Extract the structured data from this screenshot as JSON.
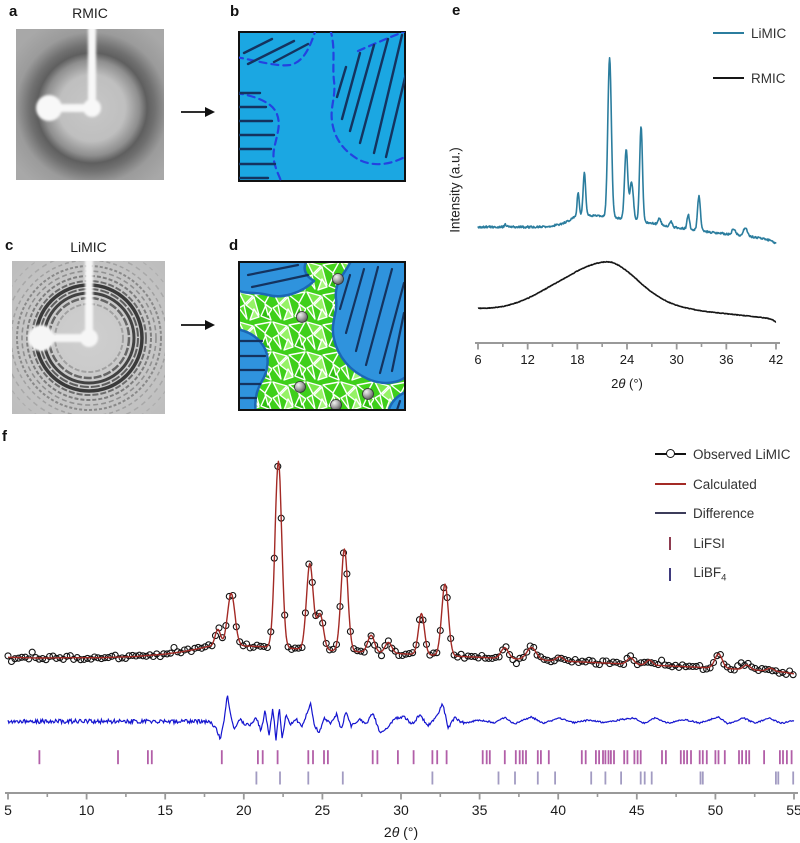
{
  "panels": {
    "a": {
      "label": "a",
      "title": "RMIC"
    },
    "b": {
      "label": "b"
    },
    "c": {
      "label": "c",
      "title": "LiMIC"
    },
    "d": {
      "label": "d"
    },
    "e": {
      "label": "e"
    },
    "f": {
      "label": "f"
    }
  },
  "colors": {
    "cyan_bg": "#1ba7e2",
    "dashed_blue": "#2442e0",
    "hatch_navy": "#14335f",
    "grain_blue": "#2f93dd",
    "grain_blue_edge": "#1b67b5",
    "green_base": "#3ecf1a",
    "axis_gray": "#999999",
    "label_dark": "#1a1a1a"
  },
  "chart_data": [
    {
      "panel": "e",
      "type": "line",
      "ylabel": "Intensity (a.u.)",
      "xlabel": {
        "pre": "2",
        "theta": "θ",
        "post": " (°)"
      },
      "xlim": [
        6,
        42
      ],
      "xticks": [
        6,
        12,
        18,
        24,
        30,
        36,
        42
      ],
      "xminor_step": 3,
      "grid": false,
      "legend_position": "top-right",
      "series": [
        {
          "name": "LiMIC",
          "color": "#2b7d9e",
          "noise": 0.0035,
          "seed": 7,
          "baseline": [
            [
              6,
              0.4
            ],
            [
              8,
              0.4
            ],
            [
              9,
              0.4
            ],
            [
              9.3,
              0.408
            ],
            [
              9.7,
              0.401
            ],
            [
              11,
              0.4
            ],
            [
              13,
              0.4
            ],
            [
              14.5,
              0.402
            ],
            [
              16,
              0.41
            ],
            [
              17,
              0.422
            ],
            [
              17.7,
              0.435
            ],
            [
              18.5,
              0.44
            ],
            [
              19.5,
              0.44
            ],
            [
              20.5,
              0.438
            ],
            [
              21.5,
              0.436
            ],
            [
              22.5,
              0.432
            ],
            [
              23.5,
              0.428
            ],
            [
              25,
              0.422
            ],
            [
              26.5,
              0.415
            ],
            [
              28,
              0.408
            ],
            [
              30,
              0.398
            ],
            [
              32,
              0.39
            ],
            [
              34,
              0.382
            ],
            [
              36,
              0.376
            ],
            [
              38,
              0.37
            ],
            [
              40,
              0.362
            ],
            [
              41.5,
              0.352
            ],
            [
              42,
              0.342
            ]
          ],
          "peaks": [
            [
              18.1,
              0.08,
              0.3
            ],
            [
              18.85,
              0.15,
              0.35
            ],
            [
              21.9,
              0.55,
              0.5
            ],
            [
              23.9,
              0.24,
              0.45
            ],
            [
              24.55,
              0.13,
              0.5
            ],
            [
              25.7,
              0.33,
              0.4
            ],
            [
              27.9,
              0.022,
              0.4
            ],
            [
              29.3,
              0.018,
              0.35
            ],
            [
              31.4,
              0.05,
              0.35
            ],
            [
              32.7,
              0.12,
              0.4
            ],
            [
              36.9,
              0.02,
              0.5
            ],
            [
              38.3,
              0.026,
              0.6
            ]
          ]
        },
        {
          "name": "RMIC",
          "color": "#161616",
          "noise": 0.001,
          "seed": 5,
          "baseline": [
            [
              6,
              0.12
            ],
            [
              7,
              0.12
            ],
            [
              8,
              0.122
            ],
            [
              9,
              0.126
            ],
            [
              10,
              0.133
            ],
            [
              11,
              0.142
            ],
            [
              12,
              0.154
            ],
            [
              13,
              0.168
            ],
            [
              14,
              0.184
            ],
            [
              15,
              0.2
            ],
            [
              16,
              0.216
            ],
            [
              17,
              0.232
            ],
            [
              18,
              0.248
            ],
            [
              19,
              0.262
            ],
            [
              20,
              0.272
            ],
            [
              20.8,
              0.278
            ],
            [
              21.5,
              0.28
            ],
            [
              22.2,
              0.278
            ],
            [
              23,
              0.268
            ],
            [
              24,
              0.248
            ],
            [
              25,
              0.224
            ],
            [
              26,
              0.198
            ],
            [
              27,
              0.175
            ],
            [
              28,
              0.156
            ],
            [
              29,
              0.141
            ],
            [
              30,
              0.13
            ],
            [
              31,
              0.122
            ],
            [
              32,
              0.116
            ],
            [
              33,
              0.111
            ],
            [
              34,
              0.107
            ],
            [
              35,
              0.104
            ],
            [
              36,
              0.101
            ],
            [
              37,
              0.098
            ],
            [
              38,
              0.095
            ],
            [
              39,
              0.092
            ],
            [
              40,
              0.089
            ],
            [
              41,
              0.085
            ],
            [
              41.6,
              0.08
            ],
            [
              42,
              0.072
            ]
          ],
          "peaks": []
        }
      ],
      "legend": [
        {
          "label": "LiMIC",
          "color": "#2b7d9e"
        },
        {
          "label": "RMIC",
          "color": "#161616"
        }
      ]
    },
    {
      "panel": "f",
      "type": "line+scatter",
      "xlabel": {
        "pre": "2",
        "theta": "θ",
        "post": " (°)"
      },
      "xlim": [
        5,
        55
      ],
      "xticks": [
        5,
        10,
        15,
        20,
        25,
        30,
        35,
        40,
        45,
        50,
        55
      ],
      "xminor_step": 2.5,
      "grid": false,
      "legend_position": "top-right",
      "observed": {
        "name": "Observed LiMIC",
        "marker": "open-circle",
        "color": "#111111",
        "step": 0.22,
        "seed": 11
      },
      "calculated": {
        "name": "Calculated",
        "color": "#a32a25",
        "baseline": [
          [
            5,
            0.379
          ],
          [
            7,
            0.377
          ],
          [
            9,
            0.378
          ],
          [
            11,
            0.378
          ],
          [
            13,
            0.381
          ],
          [
            15,
            0.388
          ],
          [
            16,
            0.394
          ],
          [
            17,
            0.402
          ],
          [
            17.6,
            0.408
          ],
          [
            18.2,
            0.412
          ],
          [
            19,
            0.413
          ],
          [
            20,
            0.411
          ],
          [
            21,
            0.409
          ],
          [
            22,
            0.407
          ],
          [
            23,
            0.404
          ],
          [
            24,
            0.401
          ],
          [
            25,
            0.399
          ],
          [
            26,
            0.397
          ],
          [
            27,
            0.395
          ],
          [
            28,
            0.393
          ],
          [
            29,
            0.391
          ],
          [
            30,
            0.389
          ],
          [
            31,
            0.387
          ],
          [
            32,
            0.385
          ],
          [
            33,
            0.383
          ],
          [
            34,
            0.381
          ],
          [
            35,
            0.379
          ],
          [
            37,
            0.375
          ],
          [
            39,
            0.371
          ],
          [
            41,
            0.367
          ],
          [
            43,
            0.363
          ],
          [
            45,
            0.359
          ],
          [
            47,
            0.355
          ],
          [
            49,
            0.351
          ],
          [
            51,
            0.347
          ],
          [
            53,
            0.342
          ],
          [
            54.3,
            0.338
          ],
          [
            55,
            0.333
          ]
        ],
        "peaks": [
          [
            18.35,
            0.045,
            0.4
          ],
          [
            19.2,
            0.145,
            0.55
          ],
          [
            22.2,
            0.52,
            0.5
          ],
          [
            24.2,
            0.24,
            0.5
          ],
          [
            24.85,
            0.1,
            0.5
          ],
          [
            26.4,
            0.285,
            0.5
          ],
          [
            28.1,
            0.048,
            0.5
          ],
          [
            29.2,
            0.03,
            0.5
          ],
          [
            31.3,
            0.115,
            0.45
          ],
          [
            32.8,
            0.2,
            0.5
          ],
          [
            36.6,
            0.03,
            0.55
          ],
          [
            38.3,
            0.034,
            0.7
          ],
          [
            40.1,
            0.012,
            0.5
          ],
          [
            44.6,
            0.018,
            0.5
          ],
          [
            45.8,
            0.014,
            0.45
          ],
          [
            50.2,
            0.04,
            0.55
          ],
          [
            52.0,
            0.013,
            0.5
          ],
          [
            53.5,
            0.008,
            0.5
          ]
        ]
      },
      "difference": {
        "name": "Difference",
        "color": "#1515cf",
        "center": 0.2,
        "seed": 3,
        "noise_zones": [
          [
            5,
            18,
            0.006
          ],
          [
            18,
            34,
            0.004
          ],
          [
            34,
            55,
            0.0022
          ]
        ],
        "wiggles": [
          [
            5,
            0
          ],
          [
            17.7,
            0
          ],
          [
            18.0,
            -0.008
          ],
          [
            18.25,
            -0.02
          ],
          [
            18.5,
            -0.05
          ],
          [
            18.75,
            0.005
          ],
          [
            18.95,
            0.075
          ],
          [
            19.15,
            0.02
          ],
          [
            19.4,
            -0.022
          ],
          [
            19.7,
            0.008
          ],
          [
            20.0,
            -0.006
          ],
          [
            20.4,
            -0.012
          ],
          [
            20.8,
            0.012
          ],
          [
            21.1,
            -0.028
          ],
          [
            21.35,
            0.03
          ],
          [
            21.6,
            -0.04
          ],
          [
            21.85,
            0.038
          ],
          [
            22.05,
            -0.055
          ],
          [
            22.25,
            0.042
          ],
          [
            22.45,
            -0.05
          ],
          [
            22.7,
            0.022
          ],
          [
            22.95,
            -0.012
          ],
          [
            23.3,
            0.008
          ],
          [
            23.7,
            -0.015
          ],
          [
            24.0,
            0.02
          ],
          [
            24.25,
            0.048
          ],
          [
            24.5,
            -0.012
          ],
          [
            24.8,
            -0.032
          ],
          [
            25.1,
            0.012
          ],
          [
            25.5,
            -0.008
          ],
          [
            25.9,
            0.02
          ],
          [
            26.2,
            -0.022
          ],
          [
            26.5,
            0.026
          ],
          [
            26.85,
            -0.014
          ],
          [
            27.3,
            0.006
          ],
          [
            27.8,
            -0.006
          ],
          [
            28.2,
            0.026
          ],
          [
            28.65,
            -0.032
          ],
          [
            29.1,
            -0.022
          ],
          [
            29.6,
            0.01
          ],
          [
            30.2,
            0.013
          ],
          [
            30.7,
            -0.008
          ],
          [
            31.2,
            0.018
          ],
          [
            31.7,
            -0.012
          ],
          [
            32.2,
            0.008
          ],
          [
            32.65,
            0.05
          ],
          [
            33.0,
            -0.018
          ],
          [
            33.4,
            0.01
          ],
          [
            34.0,
            -0.005
          ],
          [
            35.0,
            0.004
          ],
          [
            36.0,
            -0.004
          ],
          [
            36.6,
            0.012
          ],
          [
            37.2,
            -0.007
          ],
          [
            38.3,
            0.013
          ],
          [
            39.0,
            -0.005
          ],
          [
            40.1,
            0.009
          ],
          [
            41.0,
            -0.004
          ],
          [
            42.0,
            0.004
          ],
          [
            43.0,
            -0.004
          ],
          [
            44.0,
            0.005
          ],
          [
            44.8,
            0.01
          ],
          [
            45.5,
            -0.006
          ],
          [
            46.2,
            0.011
          ],
          [
            46.9,
            -0.005
          ],
          [
            48.0,
            0.005
          ],
          [
            49.0,
            -0.004
          ],
          [
            50.2,
            0.012
          ],
          [
            50.8,
            -0.007
          ],
          [
            51.8,
            0.01
          ],
          [
            52.5,
            -0.005
          ],
          [
            53.4,
            0.009
          ],
          [
            54.2,
            -0.005
          ],
          [
            55,
            0.002
          ]
        ]
      },
      "phases": [
        {
          "name": "LiFSI",
          "tick_color": "#b25fa8",
          "row_value": 0.1,
          "tick_h": 14,
          "ticks": [
            7.0,
            12.0,
            13.9,
            14.15,
            18.6,
            20.9,
            21.2,
            22.15,
            24.1,
            24.4,
            25.1,
            25.35,
            28.2,
            28.5,
            29.8,
            30.8,
            32.0,
            32.3,
            32.9,
            35.2,
            35.45,
            35.65,
            36.6,
            37.3,
            37.55,
            37.75,
            37.95,
            38.7,
            38.9,
            39.4,
            41.5,
            41.75,
            42.4,
            42.6,
            42.85,
            43.0,
            43.2,
            43.35,
            43.55,
            44.2,
            44.4,
            44.85,
            45.05,
            45.25,
            46.6,
            46.85,
            47.8,
            48.0,
            48.2,
            48.45,
            49.0,
            49.2,
            49.45,
            50.0,
            50.2,
            50.6,
            51.5,
            51.7,
            51.95,
            52.15,
            53.1,
            54.1,
            54.3,
            54.55,
            54.85
          ]
        },
        {
          "name": "LiBF",
          "name_sub": "4",
          "tick_color": "#a29bc2",
          "row_value": 0.042,
          "tick_h": 13,
          "ticks": [
            20.8,
            22.3,
            24.1,
            26.3,
            32.0,
            36.2,
            37.25,
            38.7,
            39.8,
            42.1,
            43.0,
            44.0,
            45.25,
            45.5,
            45.95,
            49.05,
            49.2,
            53.85,
            54.0,
            54.95
          ]
        }
      ],
      "legend": [
        {
          "label": "Observed LiMIC",
          "color": "#111111",
          "type": "line-circle"
        },
        {
          "label": "Calculated",
          "color": "#a32a25",
          "type": "line"
        },
        {
          "label": "Difference",
          "color": "#3c3c5a",
          "type": "line"
        },
        {
          "label": "LiFSI",
          "color": "#8e3b50",
          "type": "tick"
        },
        {
          "label": "LiBF",
          "sub": "4",
          "color": "#3f3a7d",
          "type": "tick"
        }
      ]
    }
  ]
}
